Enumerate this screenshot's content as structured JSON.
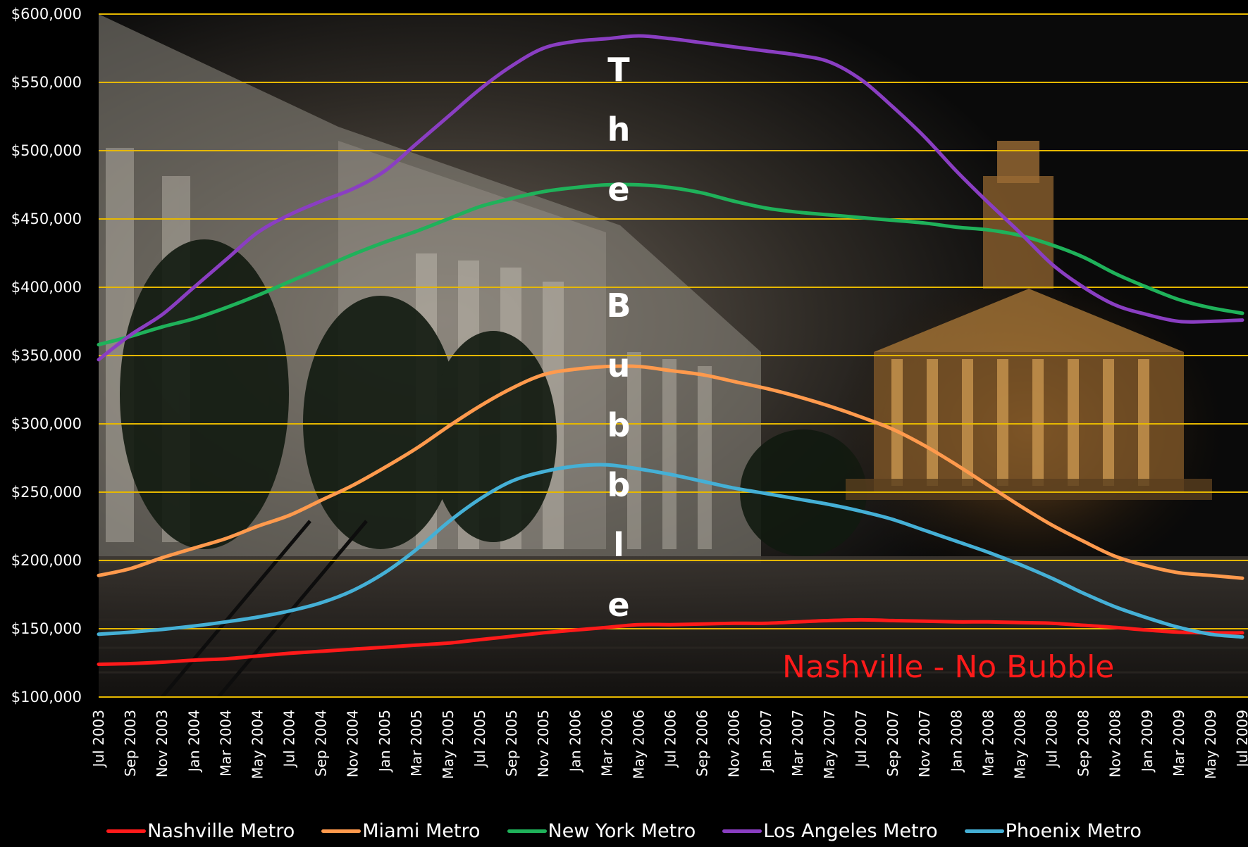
{
  "chart_data": {
    "type": "line",
    "x": [
      "Jul 2003",
      "Sep 2003",
      "Nov 2003",
      "Jan 2004",
      "Mar 2004",
      "May 2004",
      "Jul 2004",
      "Sep 2004",
      "Nov 2004",
      "Jan 2005",
      "Mar 2005",
      "May 2005",
      "Jul 2005",
      "Sep 2005",
      "Nov 2005",
      "Jan 2006",
      "Mar 2006",
      "May 2006",
      "Jul 2006",
      "Sep 2006",
      "Nov 2006",
      "Jan 2007",
      "Mar 2007",
      "May 2007",
      "Jul 2007",
      "Sep 2007",
      "Nov 2007",
      "Jan 2008",
      "Mar 2008",
      "May 2008",
      "Jul 2008",
      "Sep 2008",
      "Nov 2008",
      "Jan 2009",
      "Mar 2009",
      "May 2009",
      "Jul 2009"
    ],
    "x_tick_labels": [
      "Jul 2003",
      "Sep 2003",
      "Nov 2003",
      "Jan 2004",
      "Mar 2004",
      "May 2004",
      "Jul 2004",
      "Sep 2004",
      "Nov 2004",
      "Jan 2005",
      "Mar 2005",
      "May 2005",
      "Jul 2005",
      "Sep 2005",
      "Nov 2005",
      "Jan 2006",
      "Mar 2006",
      "May 2006",
      "Jul 2006",
      "Sep 2006",
      "Nov 2006",
      "Jan 2007",
      "Mar 2007",
      "May 2007",
      "Jul 2007",
      "Sep 2007",
      "Nov 2007",
      "Jan 2008",
      "Mar 2008",
      "May 2008",
      "Jul 2008",
      "Sep 2008",
      "Nov 2008",
      "Jan 2009",
      "Mar 2009",
      "May 2009",
      "Jul 2009"
    ],
    "y_tick_labels": [
      "$100,000",
      "$150,000",
      "$200,000",
      "$250,000",
      "$300,000",
      "$350,000",
      "$400,000",
      "$450,000",
      "$500,000",
      "$550,000",
      "$600,000"
    ],
    "y_ticks": [
      100000,
      150000,
      200000,
      250000,
      300000,
      350000,
      400000,
      450000,
      500000,
      550000,
      600000
    ],
    "ylim": [
      100000,
      600000
    ],
    "grid": true,
    "grid_color": "#e6b800",
    "legend_position": "bottom",
    "series": [
      {
        "name": "Nashville Metro",
        "color": "#ff1a1a",
        "values": [
          124000,
          124500,
          125500,
          127000,
          128000,
          130000,
          132000,
          133500,
          135000,
          136500,
          138000,
          139500,
          142000,
          144500,
          147000,
          149000,
          151000,
          153000,
          153000,
          153500,
          154000,
          154000,
          155000,
          156000,
          156500,
          156000,
          155500,
          155000,
          155000,
          154500,
          154000,
          152500,
          151000,
          149000,
          147500,
          147000,
          147000
        ]
      },
      {
        "name": "Miami Metro",
        "color": "#ff9a4d",
        "values": [
          189000,
          194000,
          202000,
          209000,
          216000,
          225000,
          233000,
          244000,
          255000,
          268000,
          282000,
          298000,
          313000,
          326000,
          336000,
          340000,
          342000,
          342000,
          339000,
          336000,
          331000,
          326000,
          320000,
          313000,
          305000,
          296000,
          284000,
          270000,
          255000,
          240000,
          226000,
          214000,
          203000,
          196000,
          191000,
          189000,
          187000
        ]
      },
      {
        "name": "New York Metro",
        "color": "#1fb25a",
        "values": [
          358000,
          364000,
          371000,
          377000,
          385000,
          394000,
          404000,
          414000,
          424000,
          433000,
          441000,
          450000,
          459000,
          465000,
          470000,
          473000,
          475000,
          475000,
          473000,
          469000,
          463000,
          458000,
          455000,
          453000,
          451000,
          449000,
          447000,
          444000,
          442000,
          438000,
          431000,
          422000,
          410000,
          400000,
          391000,
          385000,
          381000
        ]
      },
      {
        "name": "Los Angeles Metro",
        "color": "#8a3ec2",
        "values": [
          347000,
          365000,
          380000,
          400000,
          420000,
          440000,
          453000,
          463000,
          472000,
          485000,
          505000,
          525000,
          545000,
          562000,
          575000,
          580000,
          582000,
          584000,
          582000,
          579000,
          576000,
          573000,
          570000,
          565000,
          552000,
          532000,
          510000,
          485000,
          462000,
          440000,
          417000,
          400000,
          387000,
          380000,
          375000,
          375000,
          376000
        ]
      },
      {
        "name": "Phoenix Metro",
        "color": "#45b0d6",
        "values": [
          146000,
          147500,
          149500,
          152000,
          155000,
          158500,
          163000,
          169000,
          178000,
          191000,
          208000,
          228000,
          245000,
          258000,
          265000,
          269000,
          270000,
          267000,
          263000,
          258000,
          253000,
          249000,
          245000,
          241000,
          236000,
          230000,
          222000,
          214000,
          206000,
          197000,
          187000,
          176000,
          166000,
          158000,
          151000,
          146000,
          144000
        ]
      }
    ],
    "annotations": [
      {
        "text": "Nashville - No Bubble",
        "color": "#ff1a1a"
      },
      {
        "text": "The Bubble",
        "vertical": true,
        "color": "#ffffff"
      }
    ]
  }
}
